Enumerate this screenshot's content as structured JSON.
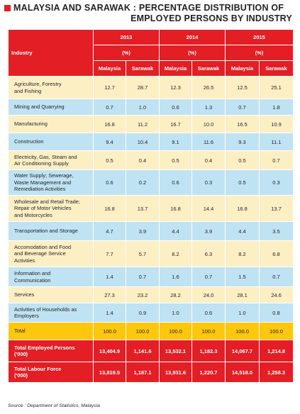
{
  "title": {
    "line1": "MALAYSIA AND SARAWAK : PERCENTAGE DISTRIBUTION OF",
    "line2": "EMPLOYED PERSONS BY INDUSTRY"
  },
  "header": {
    "industry": "Industry",
    "years": [
      "2013",
      "2014",
      "2015"
    ],
    "unit": "(%)",
    "malaysia": "Malaysia",
    "sarawak": "Sarawak"
  },
  "rows": [
    {
      "industry": "Agriculture, Forestry\nand Fishing",
      "values": [
        "12.7",
        "28.7",
        "12.3",
        "26.5",
        "12.5",
        "25.1"
      ]
    },
    {
      "industry": "Mining and Quarrying",
      "values": [
        "0.7",
        "1.0",
        "0.6",
        "1.3",
        "0.7",
        "1.8"
      ]
    },
    {
      "industry": "Manufacturing",
      "values": [
        "16.8",
        "11.2",
        "16.7",
        "10.0",
        "16.5",
        "10.9"
      ]
    },
    {
      "industry": "Construction",
      "values": [
        "9.4",
        "10.4",
        "9.1",
        "11.6",
        "9.3",
        "11.1"
      ]
    },
    {
      "industry": "Electricity, Gas, Steam and\nAir Conditioning Supply",
      "values": [
        "0.5",
        "0.4",
        "0.5",
        "0.4",
        "0.5",
        "0.7"
      ]
    },
    {
      "industry": "Water Supply; Sewerage,\nWaste Management and\nRemediation Activities",
      "values": [
        "0.6",
        "0.2",
        "0.6",
        "0.3",
        "0.5",
        "0.3"
      ]
    },
    {
      "industry": "Wholesale and Retail Trade;\nRepair of Motor Vehicles\nand Motorcycles",
      "values": [
        "16.8",
        "13.7",
        "16.8",
        "14.4",
        "16.8",
        "13.7"
      ]
    },
    {
      "industry": "Transportation and Storage",
      "values": [
        "4.7",
        "3.9",
        "4.4",
        "3.9",
        "4.4",
        "3.5"
      ]
    },
    {
      "industry": "Accomodation and Food\nand Beverage Service\nActivities",
      "values": [
        "7.7",
        "5.7",
        "8.2",
        "6.3",
        "8.2",
        "6.8"
      ]
    },
    {
      "industry": "Information and\nCommunication",
      "values": [
        "1.4",
        "0.7",
        "1.6",
        "0.7",
        "1.5",
        "0.7"
      ]
    },
    {
      "industry": "Services",
      "values": [
        "27.3",
        "23.2",
        "28.2",
        "24.0",
        "28.1",
        "24.6"
      ]
    },
    {
      "industry": "Activities of Households as\nEmployers",
      "values": [
        "1.4",
        "0.9",
        "1.0",
        "0.6",
        "1.0",
        "0.8"
      ]
    }
  ],
  "total_row": {
    "industry": "Total",
    "values": [
      "100.0",
      "100.0",
      "100.0",
      "100.0",
      "100.0",
      "100.0"
    ]
  },
  "employed_row": {
    "industry": "Total Employed Persons\n('000)",
    "values": [
      "13,404.9",
      "1,141.6",
      "13,532.1",
      "1,182.3",
      "14,067.7",
      "1,214.8"
    ]
  },
  "labour_row": {
    "industry": "Total Labour Force\n('000)",
    "values": [
      "13,819.5",
      "1,187.1",
      "13,931.6",
      "1,220.7",
      "14,518.0",
      "1,258.3"
    ]
  },
  "source": "Source :  Department of Statistics, Malaysia",
  "colors": {
    "red": "#e31e24",
    "light": "#fdefc4",
    "blue": "#bfe3f3",
    "total": "#fdc70d"
  }
}
